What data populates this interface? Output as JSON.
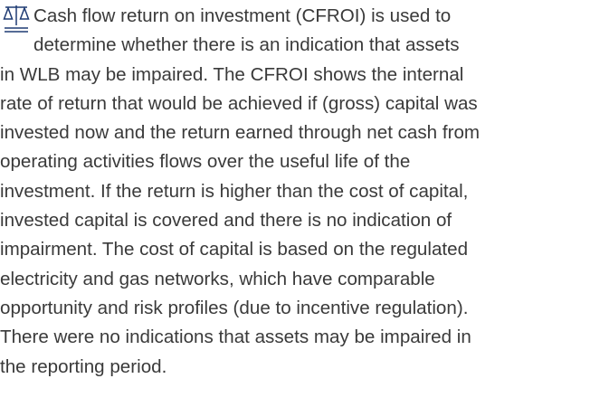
{
  "paragraph": {
    "lines": [
      "Cash flow return on investment (CFROI) is used to",
      "determine whether there is an indication that assets",
      "in WLB may be impaired. The CFROI shows the internal",
      "rate of return that would be achieved if (gross) capital was",
      "invested now and the return earned through net cash from",
      "operating activities flows over the useful life of the",
      "investment. If the return is higher than the cost of capital,",
      "invested capital is covered and there is no indication of",
      "impairment. The cost of capital is based on the regulated",
      "electricity and gas networks, which have comparable",
      "opportunity and risk profiles (due to incentive regulation).",
      "There were no indications that assets may be impaired in",
      "the reporting period."
    ]
  }
}
